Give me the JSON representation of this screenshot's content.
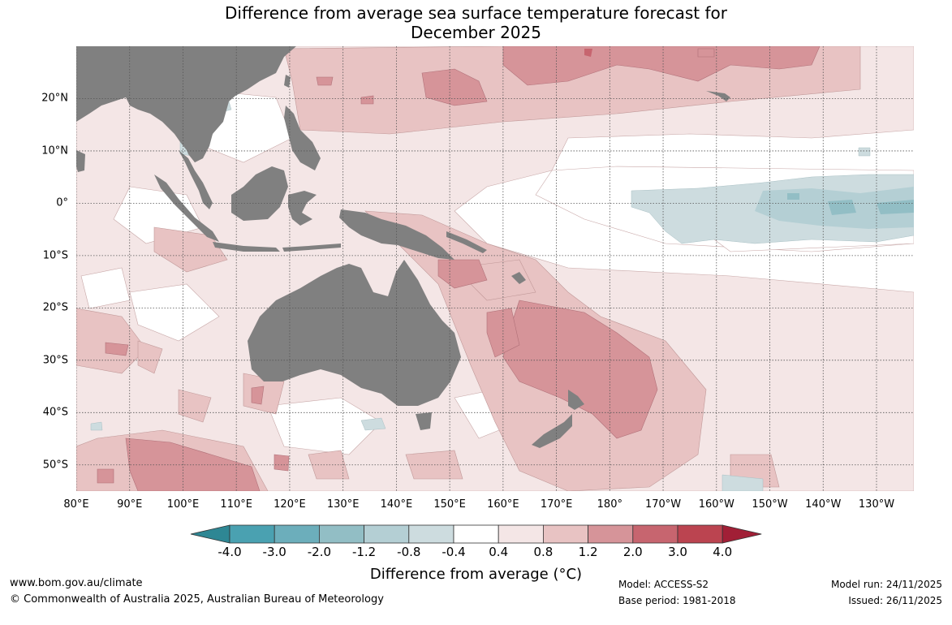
{
  "title": {
    "line1": "Difference from average sea surface temperature forecast for",
    "line2": "December 2025"
  },
  "map": {
    "lon_labels": [
      "80°E",
      "90°E",
      "100°E",
      "110°E",
      "120°E",
      "130°E",
      "140°E",
      "150°E",
      "160°E",
      "170°E",
      "180°",
      "170°W",
      "160°W",
      "150°W",
      "140°W",
      "130°W"
    ],
    "lat_labels": [
      "20°N",
      "10°N",
      "0°",
      "10°S",
      "20°S",
      "30°S",
      "40°S",
      "50°S"
    ],
    "lon_values": [
      80,
      90,
      100,
      110,
      120,
      130,
      140,
      150,
      160,
      170,
      180,
      190,
      200,
      210,
      220,
      230
    ],
    "lat_values": [
      20,
      10,
      0,
      -10,
      -20,
      -30,
      -40,
      -50
    ],
    "lon_range": [
      80,
      237
    ],
    "lat_range": [
      -55,
      30
    ],
    "land_color": "#808080",
    "ocean_color": "#ffffff",
    "grid_color": "#555555"
  },
  "colorbar": {
    "tick_labels": [
      "-4.0",
      "-3.0",
      "-2.0",
      "-1.2",
      "-0.8",
      "-0.4",
      "0.4",
      "0.8",
      "1.2",
      "2.0",
      "3.0",
      "4.0"
    ],
    "colors": [
      "#2e8794",
      "#4aa1b1",
      "#6caebb",
      "#92bec5",
      "#b4cfd4",
      "#cddcdf",
      "#ffffff",
      "#f4e6e6",
      "#e8c3c3",
      "#d69499",
      "#c7656f",
      "#bb4450",
      "#a11f36"
    ],
    "label": "Difference from average (°C)"
  },
  "footer": {
    "website": "www.bom.gov.au/climate",
    "copyright": "© Commonwealth of Australia 2025, Australian Bureau of Meteorology",
    "model": "Model: ACCESS-S2",
    "base_period": "Base period: 1981-2018",
    "model_run": "Model run: 24/11/2025",
    "issued": "Issued: 26/11/2025"
  }
}
